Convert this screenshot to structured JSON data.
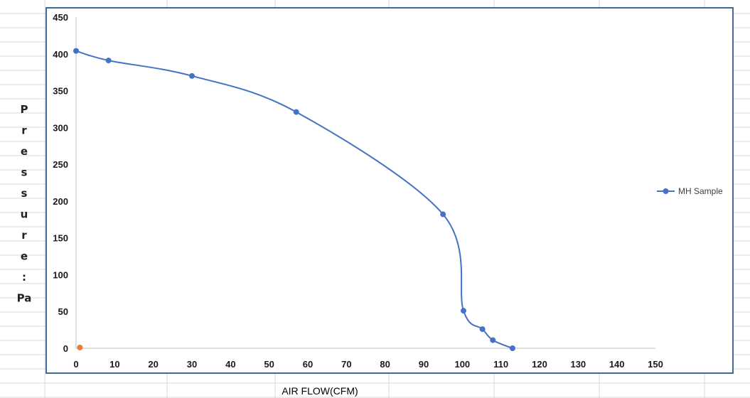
{
  "chart_data": {
    "type": "scatter",
    "title": "",
    "xlabel": "AIR FLOW(CFM)",
    "ylabel": "Pressure:Pa",
    "xlim": [
      0,
      150
    ],
    "ylim": [
      0,
      450
    ],
    "x_ticks": [
      0,
      10,
      20,
      30,
      40,
      50,
      60,
      70,
      80,
      90,
      100,
      110,
      120,
      130,
      140,
      150
    ],
    "y_ticks": [
      0,
      50,
      100,
      150,
      200,
      250,
      300,
      350,
      400,
      450
    ],
    "grid": false,
    "smooth": true,
    "legend_position": "right",
    "series": [
      {
        "name": "MH Sample",
        "color": "#4472c4",
        "x": [
          0,
          8.4,
          30,
          57,
          95,
          100.3,
          105.2,
          107.9,
          113
        ],
        "y": [
          404,
          391,
          370,
          321,
          182,
          51,
          26,
          11,
          0
        ]
      },
      {
        "color": "#ed7d31",
        "x": [
          1
        ],
        "y": [
          1
        ]
      }
    ]
  }
}
